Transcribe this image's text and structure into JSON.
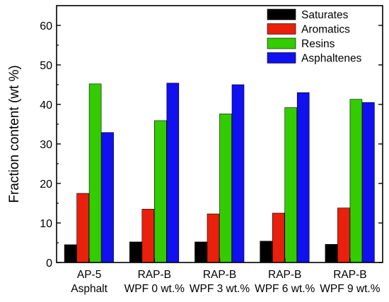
{
  "chart_data": {
    "type": "bar",
    "title": "",
    "xlabel": "",
    "ylabel": "Fraction content (wt %)",
    "ylim": [
      0,
      65
    ],
    "yticks": [
      0,
      10,
      20,
      30,
      40,
      50,
      60
    ],
    "grid": false,
    "legend_position": "top-right",
    "categories": [
      [
        "AP-5",
        "Asphalt"
      ],
      [
        "RAP-B",
        "WPF 0 wt.%"
      ],
      [
        "RAP-B",
        "WPF 3 wt.%"
      ],
      [
        "RAP-B",
        "WPF 6 wt.%"
      ],
      [
        "RAP-B",
        "WPF 9 wt.%"
      ]
    ],
    "series": [
      {
        "name": "Saturates",
        "color": "#000000",
        "values": [
          4.5,
          5.2,
          5.2,
          5.4,
          4.6
        ]
      },
      {
        "name": "Aromatics",
        "color": "#e8200c",
        "values": [
          17.5,
          13.5,
          12.3,
          12.5,
          13.8
        ]
      },
      {
        "name": "Resins",
        "color": "#33cc00",
        "values": [
          45.2,
          35.9,
          37.6,
          39.2,
          41.3
        ]
      },
      {
        "name": "Asphaltenes",
        "color": "#1010f0",
        "values": [
          32.9,
          45.4,
          45.0,
          43.0,
          40.5
        ]
      }
    ]
  }
}
